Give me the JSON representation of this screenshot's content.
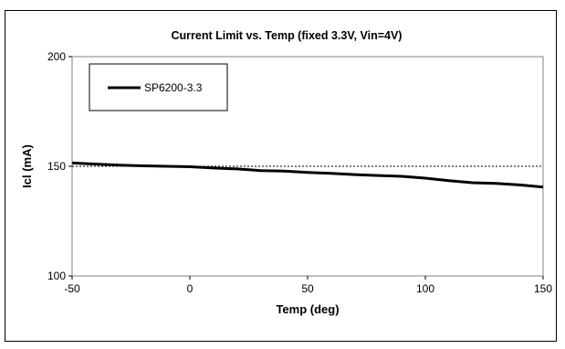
{
  "chart_data": {
    "type": "line",
    "title": "Current Limit vs. Temp (fixed 3.3V, Vin=4V)",
    "xlabel": "Temp (deg)",
    "ylabel": "Icl (mA)",
    "xlim": [
      -50,
      150
    ],
    "ylim": [
      100,
      200
    ],
    "xticks": [
      -50,
      0,
      50,
      100,
      150
    ],
    "yticks": [
      100,
      150,
      200
    ],
    "xtick_labels": [
      "-50",
      "0",
      "50",
      "100",
      "150"
    ],
    "ytick_labels": [
      "100",
      "150",
      "200"
    ],
    "grid": false,
    "reference_line": {
      "y": 150,
      "style": "dotted"
    },
    "legend": {
      "placement": "top-left",
      "entries": [
        "SP6200-3.3"
      ]
    },
    "series": [
      {
        "name": "SP6200-3.3",
        "color": "#000000",
        "x": [
          -50,
          -40,
          -30,
          -20,
          -10,
          0,
          10,
          20,
          25,
          30,
          40,
          50,
          60,
          70,
          80,
          90,
          100,
          110,
          120,
          130,
          140,
          150
        ],
        "y": [
          151.5,
          151,
          150.5,
          150.2,
          150,
          149.8,
          149.2,
          148.8,
          148.4,
          148,
          147.8,
          147.2,
          146.8,
          146.2,
          145.8,
          145.4,
          144.6,
          143.4,
          142.5,
          142.2,
          141.5,
          140.5
        ]
      }
    ]
  }
}
